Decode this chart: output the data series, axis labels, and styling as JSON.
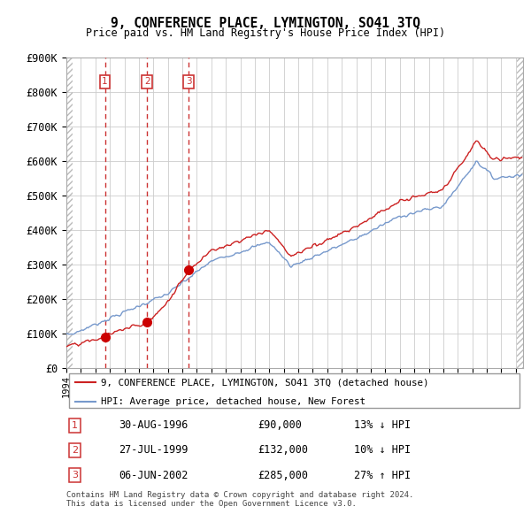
{
  "title": "9, CONFERENCE PLACE, LYMINGTON, SO41 3TQ",
  "subtitle": "Price paid vs. HM Land Registry's House Price Index (HPI)",
  "ylim": [
    0,
    900000
  ],
  "yticks": [
    0,
    100000,
    200000,
    300000,
    400000,
    500000,
    600000,
    700000,
    800000,
    900000
  ],
  "ytick_labels": [
    "£0",
    "£100K",
    "£200K",
    "£300K",
    "£400K",
    "£500K",
    "£600K",
    "£700K",
    "£800K",
    "£900K"
  ],
  "hpi_color": "#7799cc",
  "price_color": "#cc2222",
  "sale_marker_color": "#cc0000",
  "vline_color": "#cc3333",
  "grid_color": "#cccccc",
  "sale_events": [
    {
      "label": "1",
      "date_num": 1996.66,
      "price": 90000,
      "date_str": "30-AUG-1996",
      "price_str": "£90,000",
      "hpi_rel": "13% ↓ HPI"
    },
    {
      "label": "2",
      "date_num": 1999.57,
      "price": 132000,
      "date_str": "27-JUL-1999",
      "price_str": "£132,000",
      "hpi_rel": "10% ↓ HPI"
    },
    {
      "label": "3",
      "date_num": 2002.43,
      "price": 285000,
      "date_str": "06-JUN-2002",
      "price_str": "£285,000",
      "hpi_rel": "27% ↑ HPI"
    }
  ],
  "legend_entries": [
    {
      "label": "9, CONFERENCE PLACE, LYMINGTON, SO41 3TQ (detached house)",
      "color": "#cc2222",
      "lw": 1.5
    },
    {
      "label": "HPI: Average price, detached house, New Forest",
      "color": "#7799cc",
      "lw": 1.5
    }
  ],
  "footnote": "Contains HM Land Registry data © Crown copyright and database right 2024.\nThis data is licensed under the Open Government Licence v3.0.",
  "xlim_start": 1994.0,
  "xlim_end": 2025.5
}
